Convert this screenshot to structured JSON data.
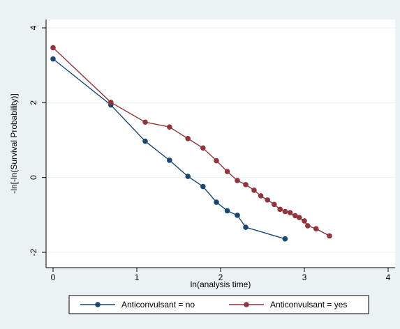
{
  "chart_data": {
    "type": "line",
    "xlabel": "ln(analysis time)",
    "ylabel": "-ln[-ln(Survival Probability)]",
    "xlim": [
      0,
      4
    ],
    "ylim": [
      -2,
      4
    ],
    "x_ticks": [
      "0",
      "1",
      "2",
      "3",
      "4"
    ],
    "y_ticks": [
      "-2",
      "0",
      "2",
      "4"
    ],
    "x_tick_values": [
      0,
      1,
      2,
      3,
      4
    ],
    "y_tick_values": [
      -2,
      0,
      2,
      4
    ],
    "grid": "horizontal at y ticks",
    "legend_position": "bottom",
    "series": [
      {
        "name": "Anticonvulsant = no",
        "color": "#1a476f",
        "x": [
          0,
          0.69,
          1.1,
          1.39,
          1.61,
          1.79,
          1.95,
          2.08,
          2.2,
          2.3,
          2.77
        ],
        "y": [
          3.17,
          1.94,
          0.97,
          0.46,
          0.03,
          -0.24,
          -0.66,
          -0.89,
          -1.01,
          -1.33,
          -1.64
        ]
      },
      {
        "name": "Anticonvulsant = yes",
        "color": "#90353b",
        "x": [
          0,
          0.69,
          1.1,
          1.39,
          1.61,
          1.79,
          1.95,
          2.08,
          2.2,
          2.3,
          2.4,
          2.48,
          2.56,
          2.64,
          2.71,
          2.77,
          2.83,
          2.89,
          2.94,
          3.0,
          3.04,
          3.14,
          3.3
        ],
        "y": [
          3.47,
          2.01,
          1.48,
          1.35,
          1.04,
          0.79,
          0.45,
          0.16,
          -0.08,
          -0.19,
          -0.34,
          -0.49,
          -0.6,
          -0.72,
          -0.85,
          -0.91,
          -0.94,
          -1.02,
          -1.07,
          -1.16,
          -1.29,
          -1.37,
          -1.56
        ]
      }
    ]
  }
}
